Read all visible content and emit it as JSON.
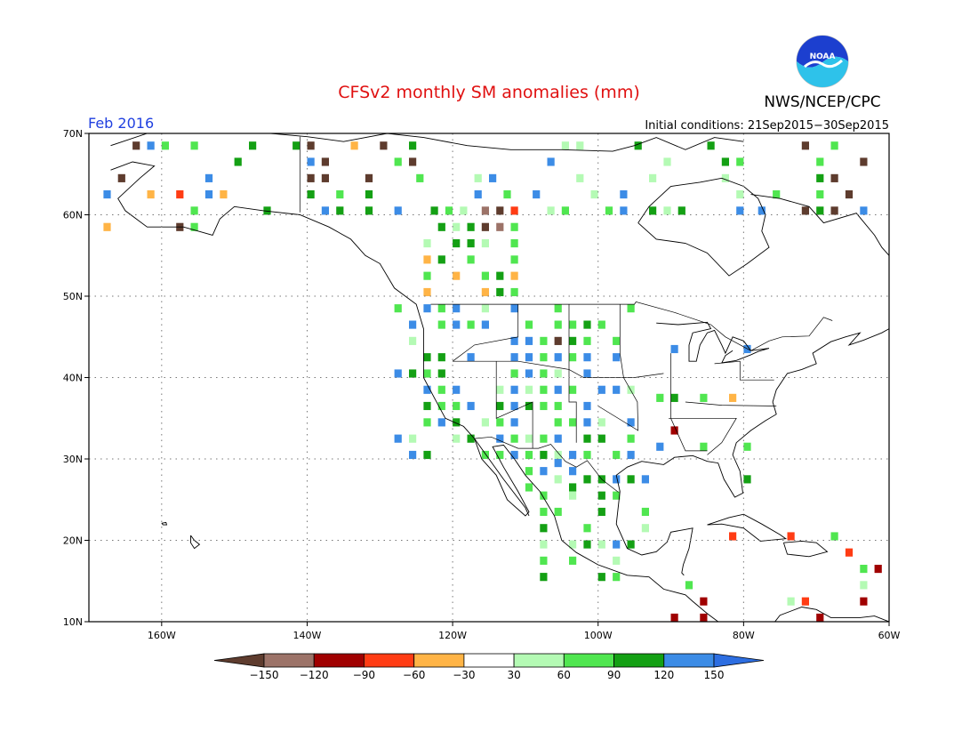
{
  "header": {
    "title": "CFSv2 monthly SM anomalies (mm)",
    "agency": "NWS/NCEP/CPC",
    "logo_text": "NOAA",
    "valid_month": "Feb 2016",
    "initial_conditions": "Initial conditions: 21Sep2015−30Sep2015"
  },
  "map": {
    "lat_labels": [
      "70N",
      "60N",
      "50N",
      "40N",
      "30N",
      "20N",
      "10N"
    ],
    "lon_labels": [
      "160W",
      "140W",
      "120W",
      "100W",
      "80W",
      "60W"
    ],
    "lat_range": [
      10,
      70
    ],
    "lon_range": [
      -170,
      -60
    ],
    "grid": "dotted"
  },
  "legend": {
    "ticks": [
      "−150",
      "−120",
      "−90",
      "−60",
      "−30",
      "30",
      "60",
      "90",
      "120",
      "150"
    ],
    "colors": [
      "#5e3c2e",
      "#9c7368",
      "#a00000",
      "#ff3c14",
      "#ffb446",
      "#ffffff",
      "#b4fab4",
      "#50e650",
      "#14a014",
      "#3c8ce6",
      "#2d6ee1"
    ]
  },
  "colors": {
    "title": "#e01010",
    "month": "#2040e0",
    "land_outline": "#000000",
    "grid": "#888888"
  },
  "anomaly_classes": {
    "dry_extreme": "#5e3c2e",
    "dry_very": "#9c7368",
    "dry_strong": "#a00000",
    "dry_moderate": "#ff3c14",
    "dry_light": "#ffb446",
    "wet_light": "#b4fab4",
    "wet_moderate": "#50e650",
    "wet_strong": "#14a014",
    "wet_very": "#3c8ce6"
  }
}
